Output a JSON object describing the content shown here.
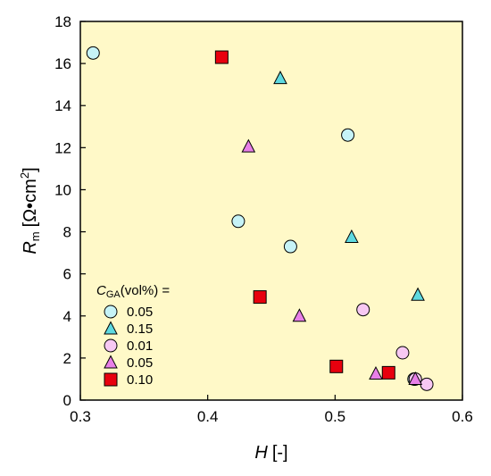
{
  "chart_data": {
    "type": "scatter",
    "background": "#fff9c8",
    "xlim": [
      0.3,
      0.6
    ],
    "ylim": [
      0,
      18
    ],
    "x_ticks": [
      "0.3",
      "0.4",
      "0.5",
      "0.6"
    ],
    "y_ticks": [
      "0",
      "2",
      "4",
      "6",
      "8",
      "10",
      "12",
      "14",
      "16",
      "18"
    ],
    "xlabel": {
      "main": "H",
      "unit": "[-]"
    },
    "ylabel": {
      "main": "R",
      "sub": "m",
      "unit_before": "[Ω",
      "dot": "•",
      "unit_mid": "cm",
      "sup": "2",
      "unit_after": "]"
    },
    "grid": false,
    "legend": {
      "position": "bottom-left",
      "title_main": "C",
      "title_sub": "GA",
      "title_rest": "(vol%) ="
    },
    "series": [
      {
        "name": "0.05",
        "marker": "circle",
        "color": "#c6f3f7",
        "points": [
          [
            0.31,
            16.5
          ],
          [
            0.424,
            8.5
          ],
          [
            0.465,
            7.3
          ],
          [
            0.51,
            12.6
          ],
          [
            0.562,
            1.0
          ]
        ]
      },
      {
        "name": "0.15",
        "marker": "triangle",
        "color": "#5ed9e0",
        "points": [
          [
            0.457,
            15.3
          ],
          [
            0.513,
            7.75
          ],
          [
            0.565,
            5.0
          ]
        ]
      },
      {
        "name": "0.01",
        "marker": "circle",
        "color": "#f7c8f3",
        "points": [
          [
            0.522,
            4.3
          ],
          [
            0.553,
            2.25
          ],
          [
            0.563,
            1.0
          ],
          [
            0.572,
            0.75
          ]
        ]
      },
      {
        "name": "0.05",
        "marker": "triangle",
        "color": "#e87fe8",
        "points": [
          [
            0.432,
            12.05
          ],
          [
            0.472,
            4.0
          ],
          [
            0.532,
            1.25
          ],
          [
            0.563,
            1.0
          ]
        ]
      },
      {
        "name": "0.10",
        "marker": "square",
        "color": "#e8000e",
        "points": [
          [
            0.411,
            16.3
          ],
          [
            0.441,
            4.9
          ],
          [
            0.501,
            1.6
          ],
          [
            0.542,
            1.3
          ]
        ]
      }
    ]
  }
}
